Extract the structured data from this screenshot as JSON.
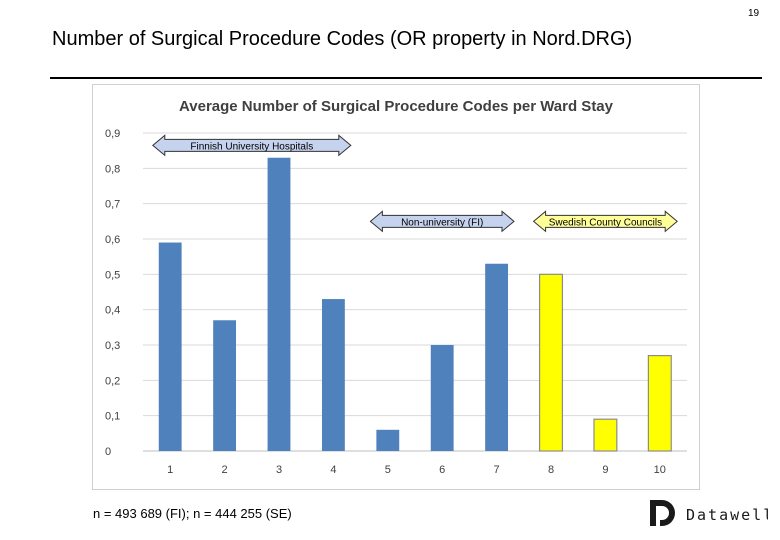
{
  "page_number": "19",
  "slide_title": "Number of Surgical Procedure Codes (OR property in Nord.DRG)",
  "footnote": "n = 493 689 (FI); n = 444 255 (SE)",
  "logo_text": "Datawell",
  "colors": {
    "bar_blue": "#4f81bd",
    "bar_yellow": "#ffff00",
    "arrow_blue": "#c5d3ee",
    "arrow_yellow": "#ffff99",
    "grid": "#d9d9d9"
  },
  "chart_data": {
    "type": "bar",
    "title": "Average Number of Surgical Procedure Codes per Ward Stay",
    "xlabel": "",
    "ylabel": "",
    "categories": [
      "1",
      "2",
      "3",
      "4",
      "5",
      "6",
      "7",
      "8",
      "9",
      "10"
    ],
    "values": [
      0.59,
      0.37,
      0.83,
      0.43,
      0.06,
      0.3,
      0.53,
      0.5,
      0.09,
      0.27
    ],
    "bar_colors": [
      "blue",
      "blue",
      "blue",
      "blue",
      "blue",
      "blue",
      "blue",
      "yellow",
      "yellow",
      "yellow"
    ],
    "ylim": [
      0,
      0.9
    ],
    "yticks": [
      0,
      0.1,
      0.2,
      0.3,
      0.4,
      0.5,
      0.6,
      0.7,
      0.8,
      0.9
    ],
    "ytick_labels": [
      "0",
      "0,1",
      "0,2",
      "0,3",
      "0,4",
      "0,5",
      "0,6",
      "0,7",
      "0,8",
      "0,9"
    ],
    "grid": true,
    "annotations": [
      {
        "text": "Finnish University Hospitals",
        "from_category": "1",
        "to_category": "4",
        "y": 0.865,
        "color": "blue"
      },
      {
        "text": "Non-university (FI)",
        "from_category": "5",
        "to_category": "7",
        "y": 0.65,
        "color": "blue"
      },
      {
        "text": "Swedish County Councils",
        "from_category": "8",
        "to_category": "10",
        "y": 0.65,
        "color": "yellow"
      }
    ]
  }
}
